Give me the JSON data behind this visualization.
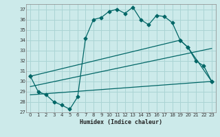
{
  "background_color": "#cceaea",
  "grid_color": "#aad4d4",
  "line_color": "#006666",
  "xlim": [
    -0.5,
    23.5
  ],
  "ylim": [
    27,
    37.5
  ],
  "xlabel": "Humidex (Indice chaleur)",
  "yticks": [
    27,
    28,
    29,
    30,
    31,
    32,
    33,
    34,
    35,
    36,
    37
  ],
  "xticks": [
    0,
    1,
    2,
    3,
    4,
    5,
    6,
    7,
    8,
    9,
    10,
    11,
    12,
    13,
    14,
    15,
    16,
    17,
    18,
    19,
    20,
    21,
    22,
    23
  ],
  "series0": {
    "x": [
      0,
      1,
      2,
      3,
      4,
      5,
      6,
      7,
      8,
      9,
      10,
      11,
      12,
      13,
      14,
      15,
      16,
      17,
      18,
      19,
      20,
      21,
      22,
      23
    ],
    "y": [
      30.5,
      29.0,
      28.7,
      28.0,
      27.7,
      27.3,
      28.5,
      34.2,
      36.0,
      36.2,
      36.8,
      37.0,
      36.6,
      37.2,
      36.0,
      35.5,
      36.4,
      36.3,
      35.7,
      34.0,
      33.3,
      32.0,
      31.5,
      30.0
    ]
  },
  "line1": {
    "x": [
      0,
      19,
      20,
      23
    ],
    "y": [
      30.5,
      34.0,
      33.3,
      30.0
    ]
  },
  "line2_straight": {
    "x": [
      0,
      23
    ],
    "y": [
      29.5,
      33.2
    ]
  },
  "line3_straight": {
    "x": [
      0,
      23
    ],
    "y": [
      28.7,
      30.0
    ]
  }
}
